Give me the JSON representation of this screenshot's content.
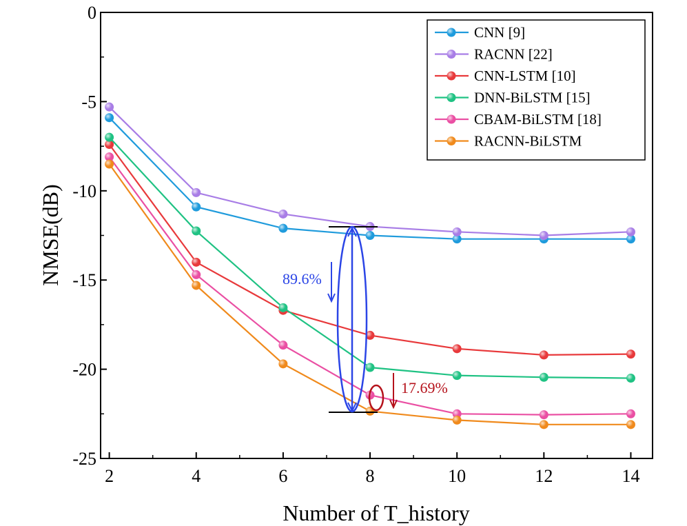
{
  "chart_data": {
    "type": "line",
    "xlabel": "Number of T_history",
    "ylabel": "NMSE(dB)",
    "xlim": [
      1.8,
      14.5
    ],
    "ylim": [
      -25,
      0
    ],
    "xticks": [
      2,
      4,
      6,
      8,
      10,
      12,
      14
    ],
    "yticks": [
      0,
      -5,
      -10,
      -15,
      -20,
      -25
    ],
    "x": [
      2,
      4,
      6,
      8,
      10,
      12,
      14
    ],
    "legend_position": "top-right",
    "grid": false,
    "series": [
      {
        "name": "CNN [9]",
        "color": "#1f9bdc",
        "values": [
          -5.9,
          -10.9,
          -12.1,
          -12.5,
          -12.7,
          -12.7,
          -12.7
        ]
      },
      {
        "name": "RACNN [22]",
        "color": "#a87de6",
        "values": [
          -5.3,
          -10.1,
          -11.3,
          -12.0,
          -12.3,
          -12.5,
          -12.3
        ]
      },
      {
        "name": "CNN-LSTM [10]",
        "color": "#e8393b",
        "values": [
          -7.4,
          -14.0,
          -16.7,
          -18.1,
          -18.85,
          -19.2,
          -19.15
        ]
      },
      {
        "name": "DNN-BiLSTM [15]",
        "color": "#1fc283",
        "values": [
          -7.0,
          -12.25,
          -16.55,
          -19.9,
          -20.35,
          -20.45,
          -20.5
        ]
      },
      {
        "name": "CBAM-BiLSTM [18]",
        "color": "#ea4fa3",
        "values": [
          -8.1,
          -14.7,
          -18.65,
          -21.45,
          -22.5,
          -22.55,
          -22.5
        ]
      },
      {
        "name": "RACNN-BiLSTM",
        "color": "#f08a1c",
        "values": [
          -8.5,
          -15.3,
          -19.7,
          -22.35,
          -22.85,
          -23.1,
          -23.1
        ]
      }
    ],
    "annotations": [
      {
        "text": "89.6%",
        "color": "#2b45e6",
        "from_y": -12.0,
        "to_y": -22.35,
        "at_x": 8
      },
      {
        "text": "17.69%",
        "color": "#b5121b",
        "at_x": 8
      }
    ]
  }
}
